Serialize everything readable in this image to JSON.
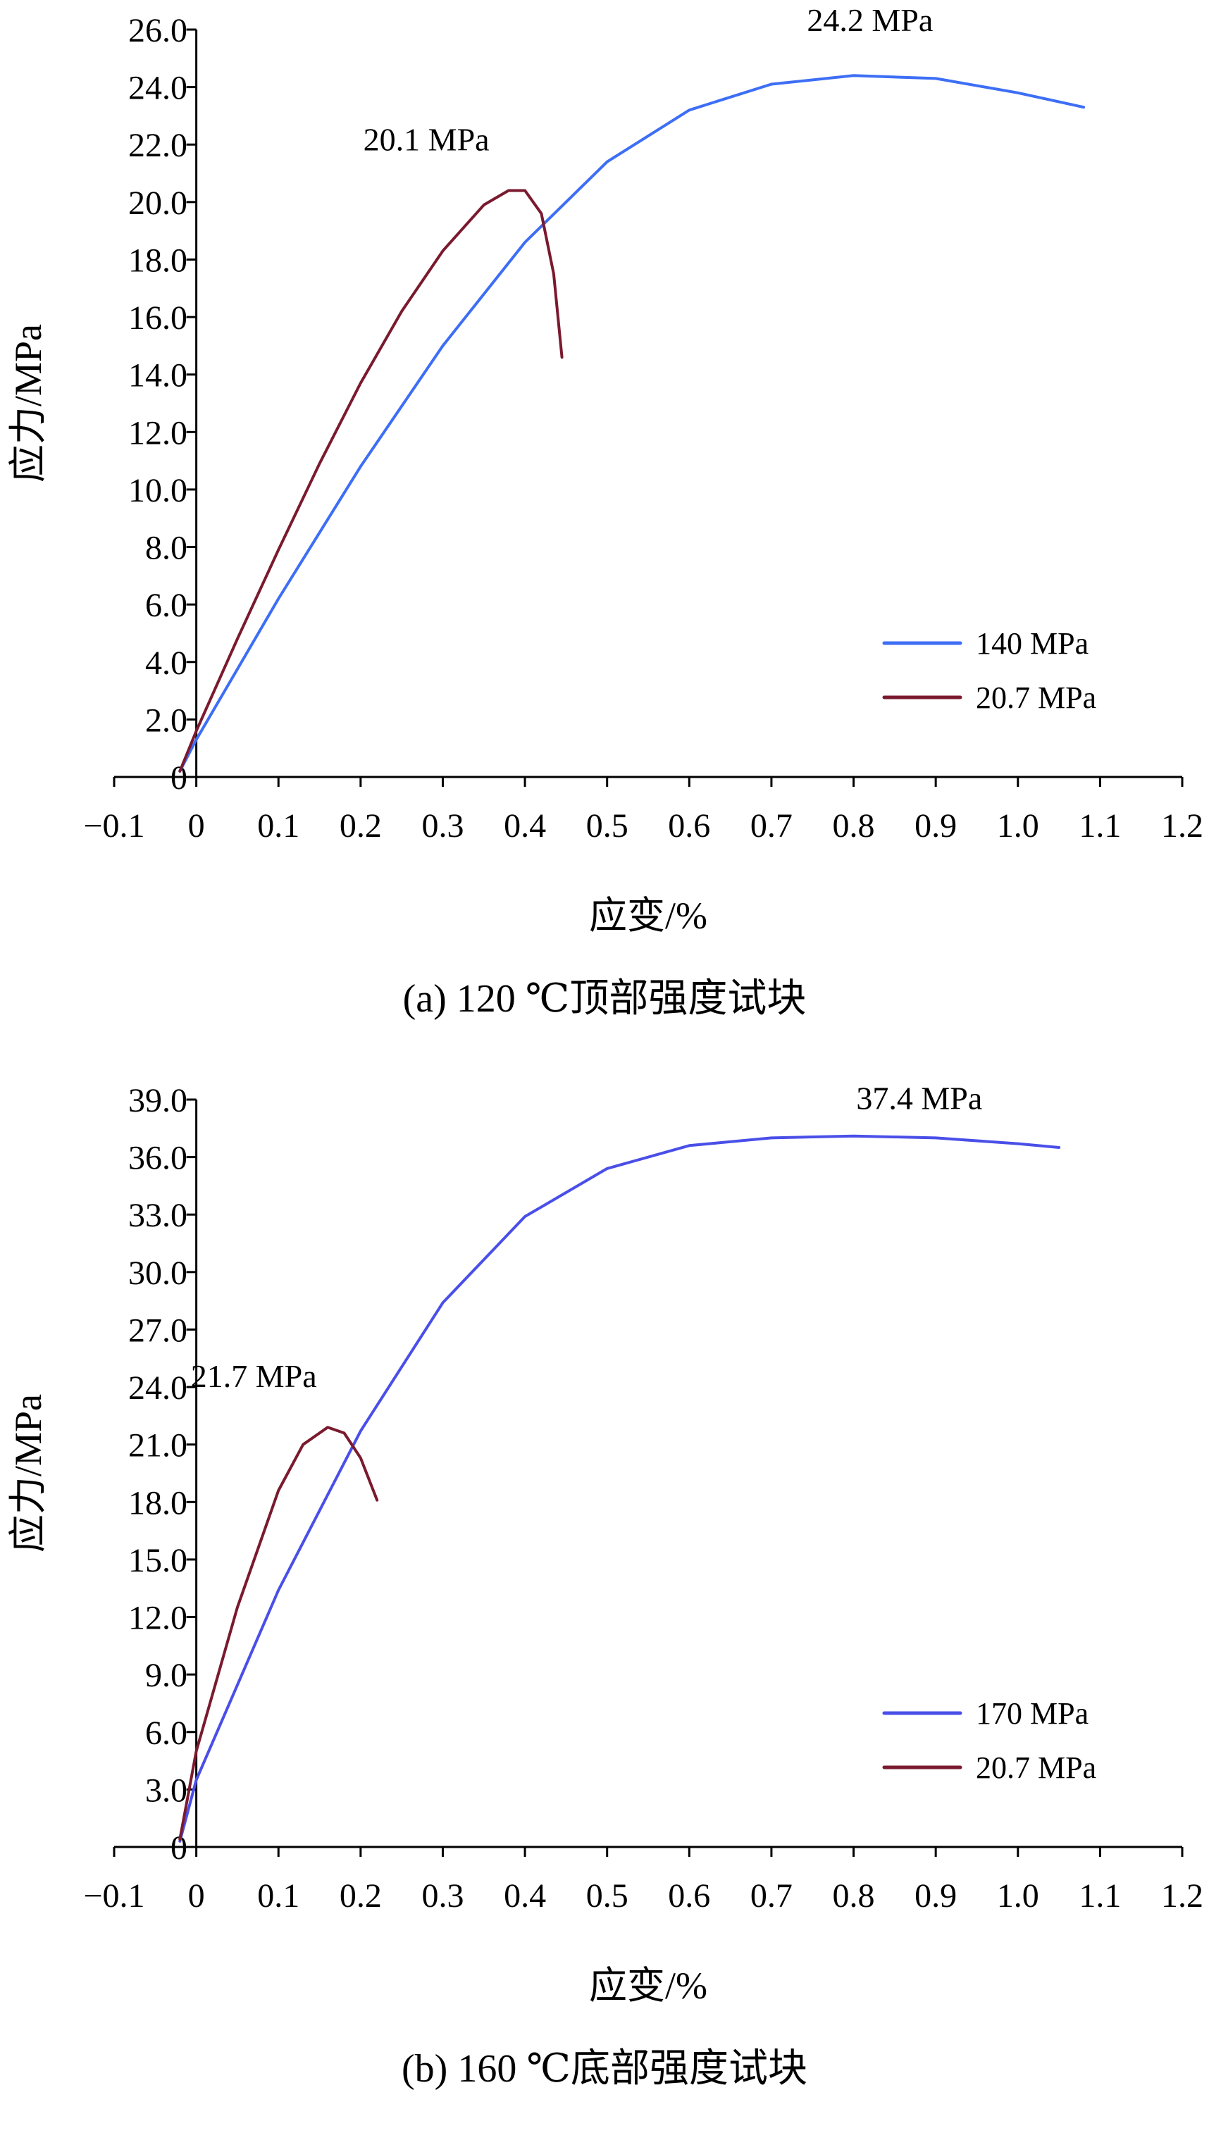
{
  "chart_data": [
    {
      "type": "line",
      "caption": "(a) 120 ℃顶部强度试块",
      "xlabel": "应变/%",
      "ylabel": "应力/MPa",
      "xlim": [
        -0.1,
        1.2
      ],
      "ylim": [
        0,
        26
      ],
      "xticks": [
        -0.1,
        0,
        0.1,
        0.2,
        0.3,
        0.4,
        0.5,
        0.6,
        0.7,
        0.8,
        0.9,
        1.0,
        1.1,
        1.2
      ],
      "xtick_labels": [
        "−0.1",
        "0",
        "0.1",
        "0.2",
        "0.3",
        "0.4",
        "0.5",
        "0.6",
        "0.7",
        "0.8",
        "0.9",
        "1.0",
        "1.1",
        "1.2"
      ],
      "yticks": [
        0,
        2,
        4,
        6,
        8,
        10,
        12,
        14,
        16,
        18,
        20,
        22,
        24,
        26
      ],
      "ytick_labels": [
        "0",
        "2.0",
        "4.0",
        "6.0",
        "8.0",
        "10.0",
        "12.0",
        "14.0",
        "16.0",
        "18.0",
        "20.0",
        "22.0",
        "24.0",
        "26.0"
      ],
      "grid": false,
      "legend_position": "bottom-right",
      "series": [
        {
          "name": "140 MPa",
          "color": "#3d6ef5",
          "x": [
            -0.02,
            0.0,
            0.1,
            0.2,
            0.3,
            0.4,
            0.5,
            0.6,
            0.7,
            0.8,
            0.9,
            1.0,
            1.08
          ],
          "y": [
            0.2,
            1.3,
            6.2,
            10.8,
            15.0,
            18.6,
            21.4,
            23.2,
            24.1,
            24.4,
            24.3,
            23.8,
            23.3
          ]
        },
        {
          "name": "20.7 MPa",
          "color": "#7a1a2e",
          "x": [
            -0.02,
            0.0,
            0.05,
            0.1,
            0.15,
            0.2,
            0.25,
            0.3,
            0.35,
            0.38,
            0.4,
            0.42,
            0.435,
            0.445
          ],
          "y": [
            0.2,
            1.6,
            4.8,
            7.9,
            10.9,
            13.7,
            16.2,
            18.3,
            19.9,
            20.4,
            20.4,
            19.6,
            17.5,
            14.6
          ]
        }
      ],
      "annotations": [
        {
          "text": "24.2 MPa",
          "x": 0.82,
          "y": 25.95
        },
        {
          "text": "20.1 MPa",
          "x": 0.28,
          "y": 21.8
        }
      ]
    },
    {
      "type": "line",
      "caption": "(b) 160 ℃底部强度试块",
      "xlabel": "应变/%",
      "ylabel": "应力/MPa",
      "xlim": [
        -0.1,
        1.2
      ],
      "ylim": [
        0,
        39
      ],
      "xticks": [
        -0.1,
        0,
        0.1,
        0.2,
        0.3,
        0.4,
        0.5,
        0.6,
        0.7,
        0.8,
        0.9,
        1.0,
        1.1,
        1.2
      ],
      "xtick_labels": [
        "−0.1",
        "0",
        "0.1",
        "0.2",
        "0.3",
        "0.4",
        "0.5",
        "0.6",
        "0.7",
        "0.8",
        "0.9",
        "1.0",
        "1.1",
        "1.2"
      ],
      "yticks": [
        0,
        3,
        6,
        9,
        12,
        15,
        18,
        21,
        24,
        27,
        30,
        33,
        36,
        39
      ],
      "ytick_labels": [
        "0",
        "3.0",
        "6.0",
        "9.0",
        "12.0",
        "15.0",
        "18.0",
        "21.0",
        "24.0",
        "27.0",
        "30.0",
        "33.0",
        "36.0",
        "39.0"
      ],
      "grid": false,
      "legend_position": "bottom-right",
      "series": [
        {
          "name": "170 MPa",
          "color": "#4a4fe8",
          "x": [
            -0.02,
            0.0,
            0.1,
            0.2,
            0.3,
            0.4,
            0.5,
            0.6,
            0.7,
            0.8,
            0.9,
            1.0,
            1.05
          ],
          "y": [
            0.3,
            3.5,
            13.4,
            21.7,
            28.4,
            32.9,
            35.4,
            36.6,
            37.0,
            37.1,
            37.0,
            36.7,
            36.5
          ]
        },
        {
          "name": "20.7 MPa",
          "color": "#7a1a2e",
          "x": [
            -0.02,
            0.0,
            0.05,
            0.1,
            0.13,
            0.16,
            0.18,
            0.2,
            0.22
          ],
          "y": [
            0.4,
            5.0,
            12.5,
            18.6,
            21.0,
            21.9,
            21.6,
            20.3,
            18.1
          ]
        }
      ],
      "annotations": [
        {
          "text": "37.4 MPa",
          "x": 0.88,
          "y": 38.5
        },
        {
          "text": "21.7 MPa",
          "x": 0.07,
          "y": 24.0
        }
      ]
    }
  ]
}
